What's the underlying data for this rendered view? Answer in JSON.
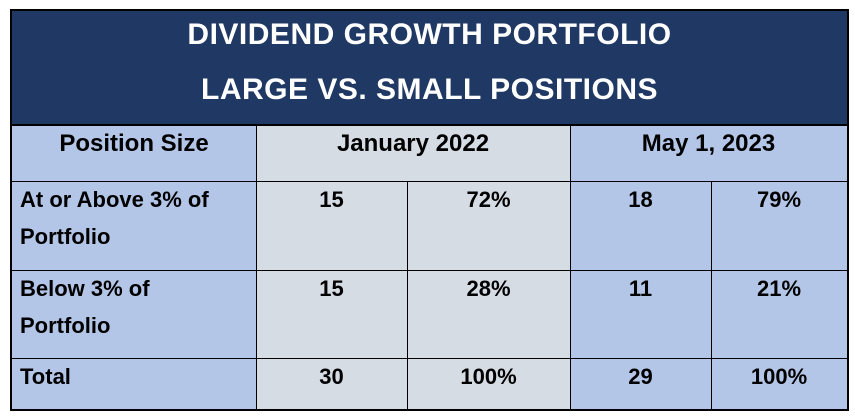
{
  "title": {
    "line1": "DIVIDEND GROWTH PORTFOLIO",
    "line2": "LARGE VS. SMALL POSITIONS"
  },
  "headers": {
    "position_size": "Position Size",
    "period1": "January 2022",
    "period2": "May 1, 2023"
  },
  "rows": [
    {
      "label": "At or Above 3% of Portfolio",
      "label_line1": "At or Above 3% of",
      "label_line2": "Portfolio",
      "p1_count": "15",
      "p1_pct": "72%",
      "p2_count": "18",
      "p2_pct": "79%"
    },
    {
      "label": "Below 3% of Portfolio",
      "label_line1": "Below 3% of",
      "label_line2": "Portfolio",
      "p1_count": "15",
      "p1_pct": "28%",
      "p2_count": "11",
      "p2_pct": "21%"
    },
    {
      "label": "Total",
      "label_line1": "Total",
      "label_line2": "",
      "p1_count": "30",
      "p1_pct": "100%",
      "p2_count": "29",
      "p2_pct": "100%"
    }
  ],
  "colors": {
    "title_band": "#1f3864",
    "label_blue": "#b4c6e7",
    "period_gray": "#d6dce4",
    "border": "#000000"
  }
}
